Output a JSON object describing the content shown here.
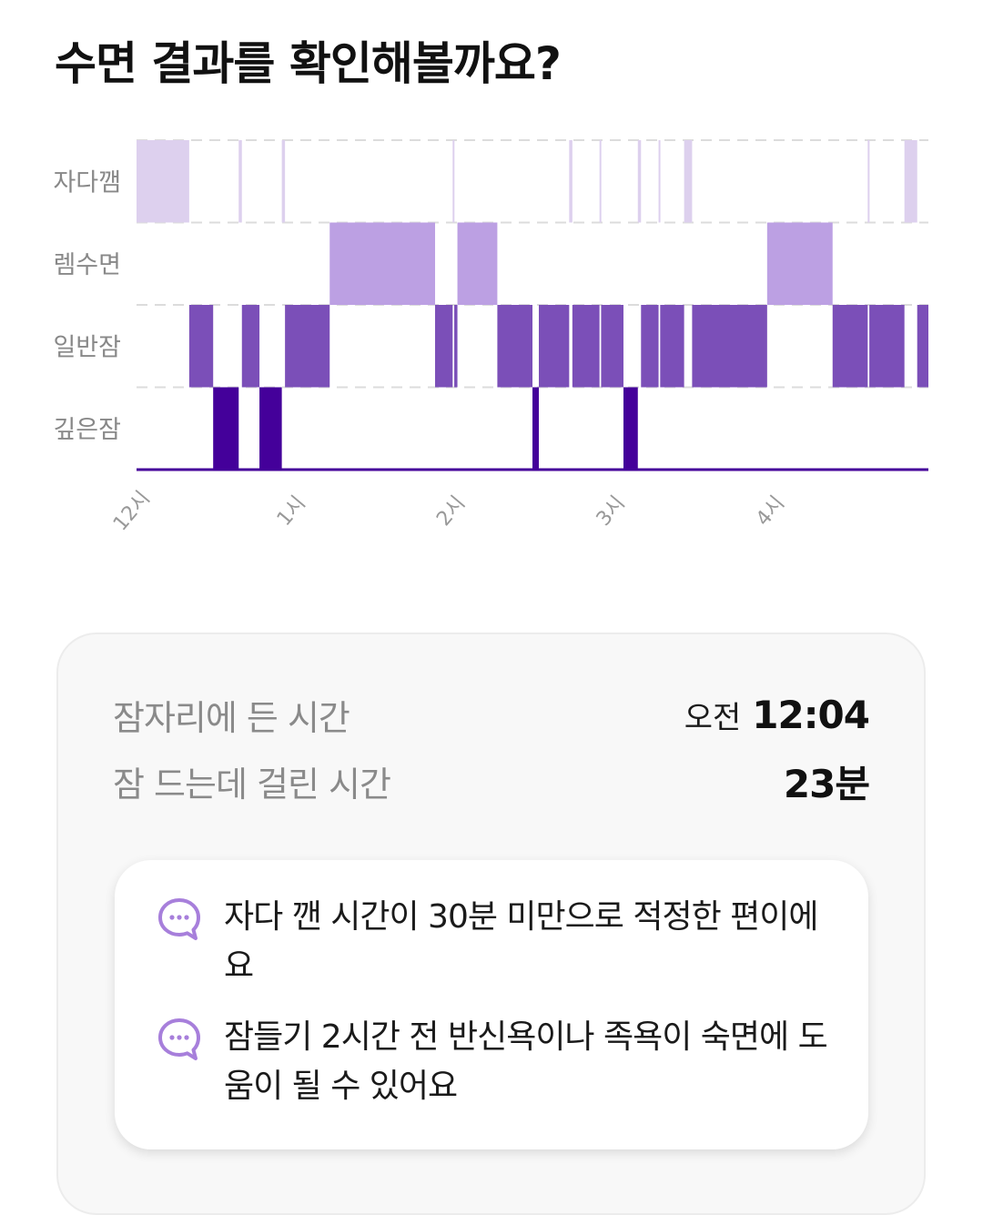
{
  "page": {
    "title": "수면 결과를 확인해볼까요?"
  },
  "chart_data": {
    "type": "hypnogram",
    "stages": [
      "자다깸",
      "렘수면",
      "일반잠",
      "깊은잠"
    ],
    "x_unit": "hour after midnight",
    "x_range": [
      0,
      4.96
    ],
    "x_ticks": [
      {
        "label": "12시",
        "value": 0
      },
      {
        "label": "1시",
        "value": 1
      },
      {
        "label": "2시",
        "value": 2
      },
      {
        "label": "3시",
        "value": 3
      },
      {
        "label": "4시",
        "value": 4
      }
    ],
    "grid": "dashed horizontal",
    "segments": [
      {
        "stage": "자다깸",
        "start": 0.0,
        "end": 0.33
      },
      {
        "stage": "일반잠",
        "start": 0.33,
        "end": 0.48
      },
      {
        "stage": "깊은잠",
        "start": 0.48,
        "end": 0.64
      },
      {
        "stage": "자다깸",
        "start": 0.64,
        "end": 0.66
      },
      {
        "stage": "일반잠",
        "start": 0.66,
        "end": 0.77
      },
      {
        "stage": "깊은잠",
        "start": 0.77,
        "end": 0.91
      },
      {
        "stage": "자다깸",
        "start": 0.91,
        "end": 0.93
      },
      {
        "stage": "일반잠",
        "start": 0.93,
        "end": 1.21
      },
      {
        "stage": "렘수면",
        "start": 1.21,
        "end": 1.87
      },
      {
        "stage": "일반잠",
        "start": 1.87,
        "end": 1.98
      },
      {
        "stage": "자다깸",
        "start": 1.98,
        "end": 1.99
      },
      {
        "stage": "일반잠",
        "start": 1.99,
        "end": 2.01
      },
      {
        "stage": "렘수면",
        "start": 2.01,
        "end": 2.26
      },
      {
        "stage": "일반잠",
        "start": 2.26,
        "end": 2.48
      },
      {
        "stage": "깊은잠",
        "start": 2.48,
        "end": 2.52
      },
      {
        "stage": "일반잠",
        "start": 2.52,
        "end": 2.71
      },
      {
        "stage": "자다깸",
        "start": 2.71,
        "end": 2.73
      },
      {
        "stage": "일반잠",
        "start": 2.73,
        "end": 2.9
      },
      {
        "stage": "자다깸",
        "start": 2.9,
        "end": 2.91
      },
      {
        "stage": "일반잠",
        "start": 2.91,
        "end": 3.05
      },
      {
        "stage": "깊은잠",
        "start": 3.05,
        "end": 3.14
      },
      {
        "stage": "자다깸",
        "start": 3.14,
        "end": 3.16
      },
      {
        "stage": "일반잠",
        "start": 3.16,
        "end": 3.27
      },
      {
        "stage": "자다깸",
        "start": 3.27,
        "end": 3.28
      },
      {
        "stage": "일반잠",
        "start": 3.28,
        "end": 3.43
      },
      {
        "stage": "자다깸",
        "start": 3.43,
        "end": 3.48
      },
      {
        "stage": "일반잠",
        "start": 3.48,
        "end": 3.95
      },
      {
        "stage": "렘수면",
        "start": 3.95,
        "end": 4.36
      },
      {
        "stage": "일반잠",
        "start": 4.36,
        "end": 4.58
      },
      {
        "stage": "자다깸",
        "start": 4.58,
        "end": 4.59
      },
      {
        "stage": "일반잠",
        "start": 4.59,
        "end": 4.81
      },
      {
        "stage": "자다깸",
        "start": 4.81,
        "end": 4.89
      },
      {
        "stage": "일반잠",
        "start": 4.89,
        "end": 4.96
      }
    ],
    "colors": {
      "자다깸": "#ddd0ee",
      "렘수면": "#bca0e3",
      "일반잠": "#7b4fb8",
      "깊은잠": "#44009a"
    }
  },
  "summary": {
    "bedtime_label": "잠자리에 든 시간",
    "bedtime_prefix": "오전",
    "bedtime_value": "12:04",
    "latency_label": "잠 드는데 걸린 시간",
    "latency_value": "23분"
  },
  "tips": [
    {
      "icon": "chat-bubble-icon",
      "text": "자다 깬 시간이 30분 미만으로 적정한 편이에요"
    },
    {
      "icon": "chat-bubble-icon",
      "text": "잠들기 2시간 전 반신욕이나 족욕이 숙면에 도움이 될 수 있어요"
    }
  ],
  "colors": {
    "accent": "#a77fdb"
  }
}
